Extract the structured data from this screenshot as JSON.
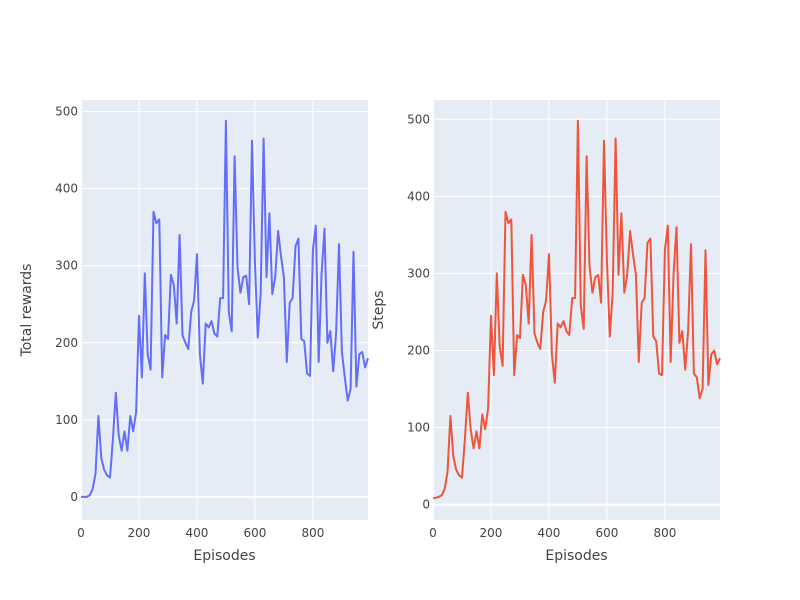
{
  "chart_data": [
    {
      "type": "line",
      "xlabel": "Episodes",
      "ylabel": "Total rewards",
      "xlim": [
        0,
        990
      ],
      "ylim": [
        -30,
        515
      ],
      "xticks": [
        0,
        200,
        400,
        600,
        800
      ],
      "xtick_labels": [
        "0",
        "200",
        "400",
        "600",
        "800"
      ],
      "yticks": [
        0,
        100,
        200,
        300,
        400,
        500
      ],
      "ytick_labels": [
        "0",
        "100",
        "200",
        "300",
        "400",
        "500"
      ],
      "color": "#636efa",
      "grid": true,
      "series": [
        {
          "x": [
            0,
            10,
            20,
            30,
            40,
            50,
            60,
            70,
            80,
            90,
            100,
            110,
            120,
            130,
            140,
            150,
            160,
            170,
            180,
            190,
            200,
            210,
            220,
            230,
            240,
            250,
            260,
            270,
            280,
            290,
            300,
            310,
            320,
            330,
            340,
            350,
            360,
            370,
            380,
            390,
            400,
            410,
            420,
            430,
            440,
            450,
            460,
            470,
            480,
            490,
            500,
            510,
            520,
            530,
            540,
            550,
            560,
            570,
            580,
            590,
            600,
            610,
            620,
            630,
            640,
            650,
            660,
            670,
            680,
            690,
            700,
            710,
            720,
            730,
            740,
            750,
            760,
            770,
            780,
            790,
            800,
            810,
            820,
            830,
            840,
            850,
            860,
            870,
            880,
            890,
            900,
            910,
            920,
            930,
            940,
            950,
            960,
            970,
            980,
            990
          ],
          "y": [
            0,
            0,
            0,
            2,
            10,
            30,
            105,
            50,
            35,
            28,
            25,
            75,
            135,
            80,
            60,
            85,
            60,
            105,
            85,
            110,
            235,
            155,
            290,
            185,
            165,
            370,
            355,
            360,
            155,
            210,
            205,
            288,
            275,
            225,
            340,
            210,
            200,
            192,
            240,
            255,
            315,
            185,
            147,
            225,
            220,
            228,
            212,
            208,
            258,
            258,
            488,
            240,
            215,
            442,
            298,
            265,
            285,
            287,
            250,
            462,
            305,
            207,
            265,
            465,
            285,
            368,
            263,
            285,
            345,
            312,
            285,
            175,
            252,
            258,
            325,
            335,
            205,
            202,
            160,
            157,
            320,
            352,
            175,
            290,
            348,
            200,
            215,
            163,
            212,
            328,
            188,
            155,
            125,
            140,
            318,
            143,
            185,
            188,
            168,
            180
          ]
        }
      ]
    },
    {
      "type": "line",
      "xlabel": "Episodes",
      "ylabel": "Steps",
      "xlim": [
        0,
        990
      ],
      "ylim": [
        -20,
        525
      ],
      "xticks": [
        0,
        200,
        400,
        600,
        800
      ],
      "xtick_labels": [
        "0",
        "200",
        "400",
        "600",
        "800"
      ],
      "yticks": [
        0,
        100,
        200,
        300,
        400,
        500
      ],
      "ytick_labels": [
        "0",
        "100",
        "200",
        "300",
        "400",
        "500"
      ],
      "color": "#ef553b",
      "grid": true,
      "series": [
        {
          "x": [
            0,
            10,
            20,
            30,
            40,
            50,
            60,
            70,
            80,
            90,
            100,
            110,
            120,
            130,
            140,
            150,
            160,
            170,
            180,
            190,
            200,
            210,
            220,
            230,
            240,
            250,
            260,
            270,
            280,
            290,
            300,
            310,
            320,
            330,
            340,
            350,
            360,
            370,
            380,
            390,
            400,
            410,
            420,
            430,
            440,
            450,
            460,
            470,
            480,
            490,
            500,
            510,
            520,
            530,
            540,
            550,
            560,
            570,
            580,
            590,
            600,
            610,
            620,
            630,
            640,
            650,
            660,
            670,
            680,
            690,
            700,
            710,
            720,
            730,
            740,
            750,
            760,
            770,
            780,
            790,
            800,
            810,
            820,
            830,
            840,
            850,
            860,
            870,
            880,
            890,
            900,
            910,
            920,
            930,
            940,
            950,
            960,
            970,
            980,
            990
          ],
          "y": [
            8,
            9,
            10,
            12,
            20,
            42,
            115,
            63,
            45,
            38,
            35,
            85,
            145,
            98,
            73,
            95,
            73,
            117,
            98,
            125,
            245,
            168,
            300,
            205,
            180,
            380,
            365,
            370,
            168,
            220,
            216,
            298,
            285,
            235,
            350,
            222,
            210,
            202,
            250,
            265,
            325,
            195,
            158,
            235,
            230,
            238,
            225,
            220,
            268,
            268,
            498,
            258,
            228,
            452,
            310,
            275,
            295,
            298,
            262,
            472,
            318,
            218,
            275,
            475,
            298,
            378,
            275,
            298,
            355,
            325,
            298,
            185,
            262,
            268,
            340,
            345,
            218,
            212,
            170,
            168,
            330,
            362,
            185,
            300,
            360,
            210,
            225,
            175,
            225,
            338,
            170,
            165,
            138,
            150,
            330,
            155,
            195,
            200,
            182,
            190
          ]
        }
      ]
    }
  ]
}
